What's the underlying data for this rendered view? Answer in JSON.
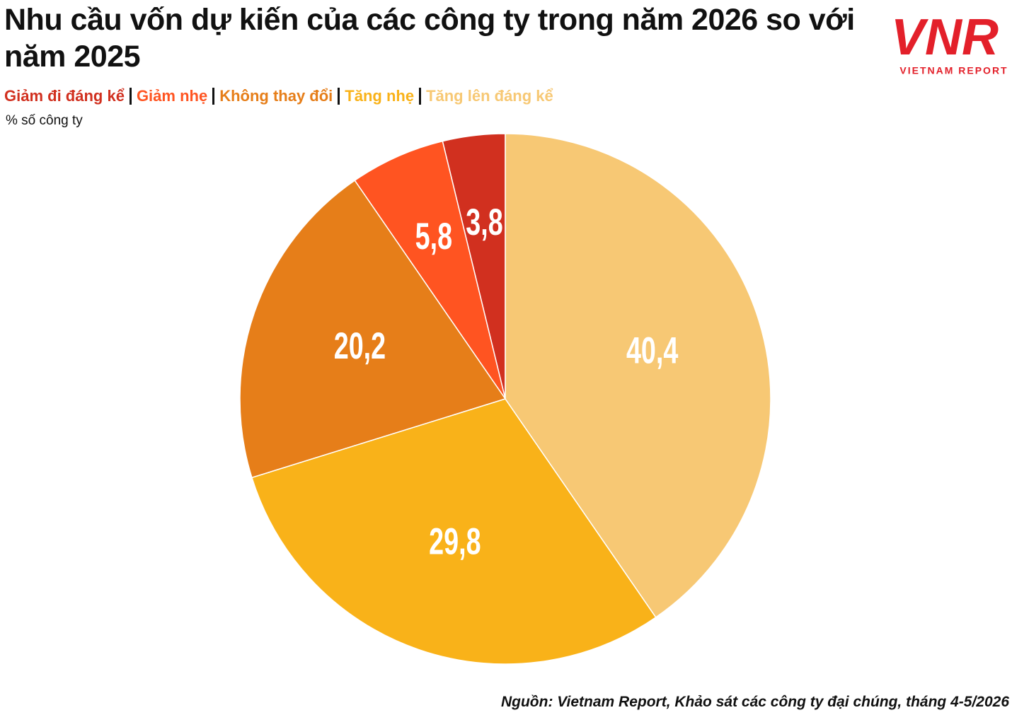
{
  "chart_data": {
    "type": "pie",
    "title": "Nhu cầu vốn dự kiến của các công ty trong năm 2026 so với năm 2025",
    "subtitle": "% số công ty",
    "categories": [
      "Giảm đi đáng kể",
      "Giảm nhẹ",
      "Không thay đổi",
      "Tăng nhẹ",
      "Tăng lên đáng kể"
    ],
    "values": [
      3.8,
      5.8,
      20.2,
      29.8,
      40.4
    ],
    "value_labels": [
      "3,8",
      "5,8",
      "20,2",
      "29,8",
      "40,4"
    ],
    "colors": [
      "#d1301f",
      "#ff5421",
      "#e67e19",
      "#f9b219",
      "#f7c874"
    ],
    "source": "Nguồn: Vietnam Report, Khảo sát các công ty đại chúng, tháng 4-5/2026"
  },
  "logo": {
    "mark": "VNR",
    "text": "VIETNAM REPORT"
  }
}
